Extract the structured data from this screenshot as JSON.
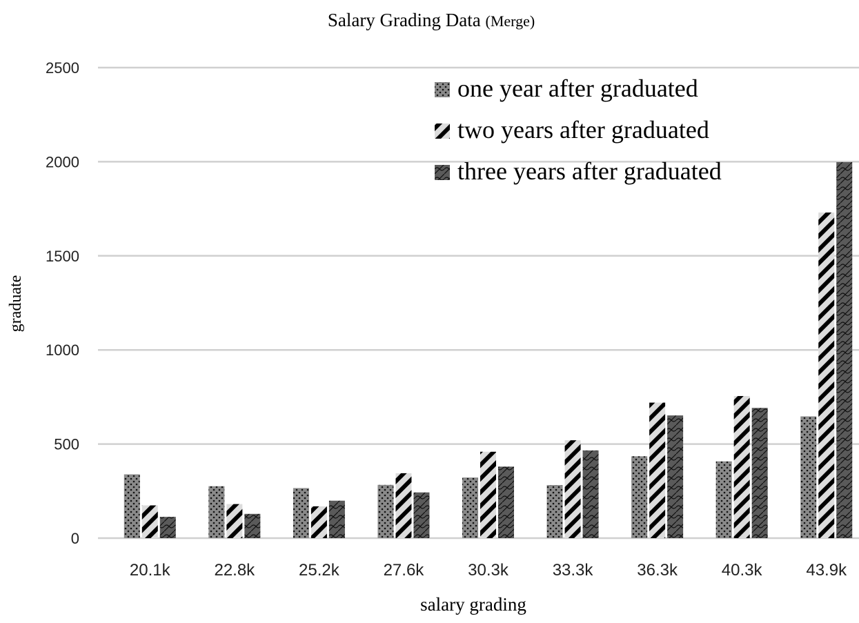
{
  "chart_data": {
    "type": "bar",
    "title": "Salary Grading Data",
    "title_suffix": "(Merge)",
    "xlabel": "salary grading",
    "ylabel": "graduate",
    "ylim": [
      0,
      2500
    ],
    "yticks": [
      0,
      500,
      1000,
      1500,
      2000,
      2500
    ],
    "grid": true,
    "legend_position": "top-right",
    "categories": [
      "20.1k",
      "22.8k",
      "25.2k",
      "27.6k",
      "30.3k",
      "33.3k",
      "36.3k",
      "40.3k",
      "43.9k"
    ],
    "series": [
      {
        "name": "one year after graduated",
        "pattern": "dots",
        "color": "#8a8a8a",
        "values": [
          339,
          276,
          266,
          283,
          322,
          282,
          435,
          408,
          647
        ]
      },
      {
        "name": "two years after graduated",
        "pattern": "diagonal-stripes",
        "color": "#dcdcdc",
        "values": [
          174,
          181,
          169,
          345,
          459,
          520,
          720,
          755,
          1730
        ]
      },
      {
        "name": "three years after graduated",
        "pattern": "scales",
        "color": "#5a5a5a",
        "values": [
          113,
          129,
          199,
          243,
          380,
          466,
          652,
          692,
          1998
        ]
      }
    ]
  }
}
